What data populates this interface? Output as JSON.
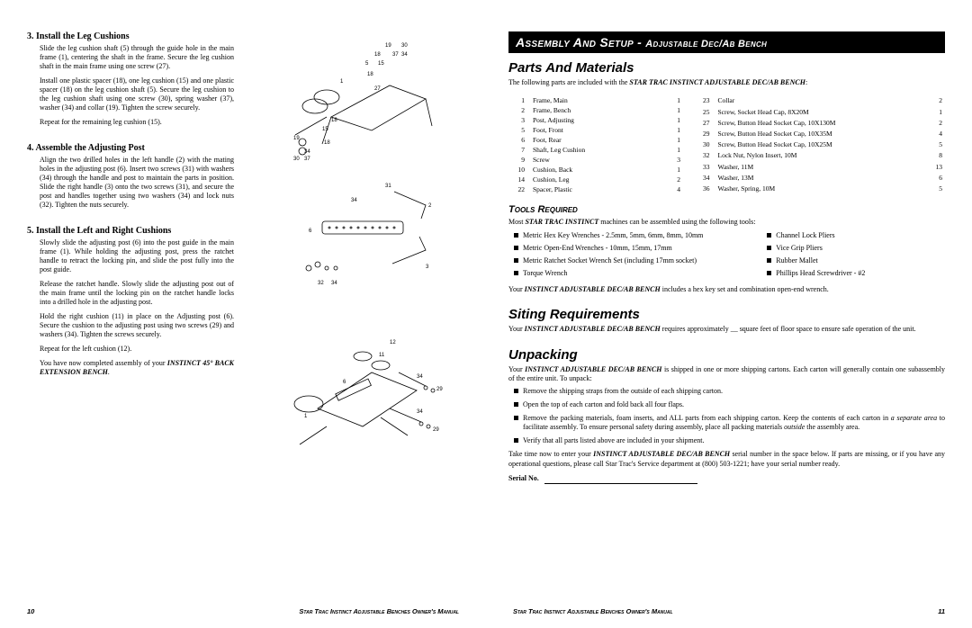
{
  "leftPage": {
    "steps": [
      {
        "num": "3.",
        "title": "Install the Leg Cushions",
        "paras": [
          "Slide the leg cushion shaft (5) through the guide hole in the main frame (1), centering the shaft in the frame. Secure the leg cushion shaft in the main frame using one screw (27).",
          "Install one plastic spacer (18), one leg cushion (15) and one plastic spacer (18) on the leg cushion shaft (5). Secure the leg cushion to the leg cushion shaft using one screw (30), spring washer (37), washer (34) and collar (19). Tighten the screw securely.",
          "Repeat for the remaining leg cushion (15)."
        ]
      },
      {
        "num": "4.",
        "title": "Assemble the Adjusting Post",
        "paras": [
          "Align the two drilled holes in the left handle (2) with the mating holes in the adjusting post (6). Insert two screws (31) with washers (34) through the handle and post to maintain the parts in position. Slide the right handle (3) onto the two screws (31), and secure the post and handles together using two washers (34) and lock nuts (32). Tighten the nuts securely."
        ]
      },
      {
        "num": "5.",
        "title": "Install the Left and Right Cushions",
        "paras": [
          "Slowly slide the adjusting post (6) into the post guide in the main frame (1). While holding the adjusting post, press the ratchet handle to retract the locking pin, and slide the post fully into the post guide.",
          "Release the ratchet handle. Slowly slide the adjusting post out of the main frame until the locking pin on the ratchet handle locks into a drilled hole in the adjusting post.",
          "Hold the right cushion (11) in place on the Adjusting post (6). Secure the cushion to the adjusting post using two screws (29) and washers (34). Tighten the screws securely.",
          "Repeat for the left cushion (12).",
          "You have now completed assembly of your <em class='product'>INSTINCT 45° BACK EXTENSION BENCH</em>."
        ]
      }
    ],
    "footer": {
      "pageNum": "10",
      "title": "Star Trac Instinct Adjustable Benches Owner's Manual"
    }
  },
  "rightPage": {
    "banner": {
      "main": "Assembly And Setup -",
      "sub": "Adjustable Dec/Ab Bench"
    },
    "sections": {
      "parts": {
        "heading": "Parts And Materials",
        "intro": "The following parts are included with the <em class='product'>STAR TRAC INSTINCT ADJUSTABLE DEC/AB BENCH</em>:",
        "left": [
          [
            "1",
            "Frame, Main",
            "1"
          ],
          [
            "2",
            "Frame, Bench",
            "1"
          ],
          [
            "3",
            "Post, Adjusting",
            "1"
          ],
          [
            "5",
            "Foot, Front",
            "1"
          ],
          [
            "6",
            "Foot, Rear",
            "1"
          ],
          [
            "7",
            "Shaft, Leg Cushion",
            "1"
          ],
          [
            "9",
            "Screw",
            "3"
          ],
          [
            "10",
            "Cushion, Back",
            "1"
          ],
          [
            "14",
            "Cushion, Leg",
            "2"
          ],
          [
            "22",
            "Spacer, Plastic",
            "4"
          ]
        ],
        "right": [
          [
            "23",
            "Collar",
            "2"
          ],
          [
            "25",
            "Screw, Socket Head Cap, 8X20M",
            "1"
          ],
          [
            "27",
            "Screw, Button Head Socket Cap, 10X130M",
            "2"
          ],
          [
            "29",
            "Screw, Button Head Socket Cap, 10X35M",
            "4"
          ],
          [
            "30",
            "Screw, Button Head Socket Cap, 10X25M",
            "5"
          ],
          [
            "32",
            "Lock Nut, Nylon Insert, 10M",
            "8"
          ],
          [
            "33",
            "Washer, 11M",
            "13"
          ],
          [
            "34",
            "Washer, 13M",
            "6"
          ],
          [
            "36",
            "Washer, Spring, 10M",
            "5"
          ]
        ]
      },
      "tools": {
        "heading": "Tools Required",
        "intro": "Most <em class='product'>STAR TRAC INSTINCT</em> machines can be assembled using the following tools:",
        "left": [
          "Metric Hex Key Wrenches - 2.5mm, 5mm, 6mm, 8mm, 10mm",
          "Metric Open-End Wrenches - 10mm, 15mm, 17mm",
          "Metric Ratchet Socket Wrench Set (including 17mm socket)",
          "Torque Wrench"
        ],
        "right": [
          "Channel Lock Pliers",
          "Vice Grip Pliers",
          "Rubber Mallet",
          "Phillips Head Screwdriver - #2"
        ],
        "note": "Your <em class='product'>INSTINCT ADJUSTABLE DEC/AB BENCH</em> includes a hex key set and combination open-end wrench."
      },
      "siting": {
        "heading": "Siting Requirements",
        "text": "Your <em class='product'>INSTINCT ADJUSTABLE DEC/AB BENCH</em> requires approximately __ square feet of floor space to ensure safe operation of the unit."
      },
      "unpacking": {
        "heading": "Unpacking",
        "intro": "Your <em class='product'>INSTINCT ADJUSTABLE DEC/AB BENCH</em> is shipped in one or more shipping cartons. Each carton will generally contain one subassembly of the entire unit. To unpack:",
        "items": [
          "Remove the shipping straps from the outside of each shipping carton.",
          "Open the top of each carton and fold back all four flaps.",
          "Remove the packing materials, foam inserts, and ALL parts from each shipping carton. Keep the contents of each carton in <em>a separate area</em> to facilitate assembly. To ensure personal safety during assembly, place all packing materials <em>outside</em> the assembly area.",
          "Verify that all parts listed above are included in your shipment."
        ],
        "outro": "Take time now to enter your <em class='product'>INSTINCT ADJUSTABLE DEC/AB BENCH</em> serial number in the space below. If parts are missing, or if you have any operational questions, please call Star Trac's Service department at (800) 503-1221; have your serial number ready.",
        "serialLabel": "Serial No."
      }
    },
    "footer": {
      "pageNum": "11",
      "title": "Star Trac Instinct Adjustable Benches Owner's Manual"
    }
  }
}
